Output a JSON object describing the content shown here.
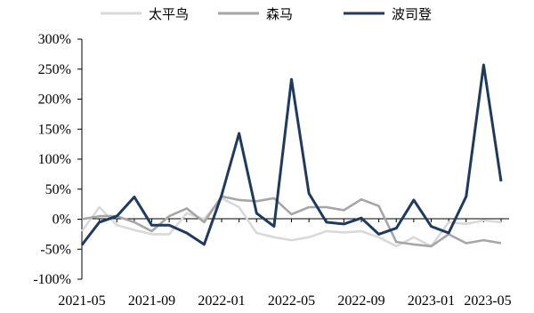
{
  "chart_data": {
    "type": "line",
    "title": "",
    "xlabel": "",
    "ylabel": "",
    "ylim": [
      -100,
      300
    ],
    "y_unit": "%",
    "y_ticks": [
      -100,
      -50,
      0,
      50,
      100,
      150,
      200,
      250,
      300
    ],
    "y_tick_labels": [
      "-100%",
      "-50%",
      "0%",
      "50%",
      "100%",
      "150%",
      "200%",
      "250%",
      "300%"
    ],
    "x": [
      "2021-05",
      "2021-06",
      "2021-07",
      "2021-08",
      "2021-09",
      "2021-10",
      "2021-11",
      "2021-12",
      "2022-01",
      "2022-02",
      "2022-03",
      "2022-04",
      "2022-05",
      "2022-06",
      "2022-07",
      "2022-08",
      "2022-09",
      "2022-10",
      "2022-11",
      "2022-12",
      "2023-01",
      "2023-02",
      "2023-03",
      "2023-04",
      "2023-05"
    ],
    "x_tick_labels": [
      "2021-05",
      "2021-09",
      "2022-01",
      "2022-05",
      "2022-09",
      "2023-01",
      "2023-05"
    ],
    "legend_position": "top",
    "grid": false,
    "series": [
      {
        "name": "太平鸟",
        "color": "#d9d9d9",
        "values": [
          -20,
          20,
          -10,
          -18,
          -25,
          -25,
          10,
          0,
          35,
          20,
          -23,
          -30,
          -35,
          -30,
          -20,
          -22,
          -20,
          -30,
          -45,
          -30,
          -45,
          -5,
          -8,
          -2,
          -5
        ]
      },
      {
        "name": "森马",
        "color": "#a6a6a6",
        "values": [
          0,
          5,
          5,
          -5,
          -20,
          5,
          18,
          -5,
          38,
          32,
          30,
          35,
          8,
          20,
          20,
          15,
          33,
          22,
          -38,
          -42,
          -45,
          -25,
          -40,
          -35,
          -40
        ]
      },
      {
        "name": "波司登",
        "color": "#1f3a5f",
        "values": [
          -43,
          -5,
          5,
          37,
          -10,
          -10,
          -23,
          -42,
          40,
          143,
          10,
          -12,
          233,
          43,
          -5,
          -8,
          2,
          -25,
          -15,
          32,
          -12,
          -23,
          38,
          257,
          63
        ]
      }
    ]
  }
}
